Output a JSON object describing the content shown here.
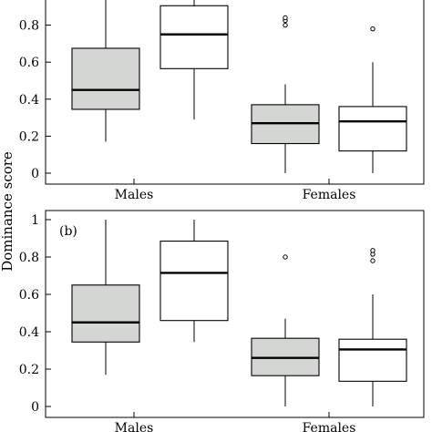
{
  "figure": {
    "shared_ylabel": "Dominance score"
  },
  "chart_data": [
    {
      "type": "box",
      "panel_label": "",
      "categories": [
        "Males",
        "Females"
      ],
      "ylim": [
        0,
        1
      ],
      "yticks": [
        "0",
        "0.2",
        "0.4",
        "0.6",
        "0.8"
      ],
      "grid": false,
      "legend": "none",
      "colors": {
        "grey": "#d3d6d3",
        "white": "#ffffff"
      },
      "boxes": [
        {
          "category": "Males",
          "fill": "grey",
          "min": 0.17,
          "q1": 0.345,
          "median": 0.45,
          "q3": 0.675,
          "max": 1.0,
          "outliers": []
        },
        {
          "category": "Males",
          "fill": "white",
          "min": 0.29,
          "q1": 0.565,
          "median": 0.75,
          "q3": 0.905,
          "max": 1.0,
          "outliers": []
        },
        {
          "category": "Females",
          "fill": "grey",
          "min": 0.0,
          "q1": 0.16,
          "median": 0.27,
          "q3": 0.37,
          "max": 0.48,
          "outliers": [
            0.8,
            0.825,
            0.84
          ]
        },
        {
          "category": "Females",
          "fill": "white",
          "min": 0.0,
          "q1": 0.12,
          "median": 0.28,
          "q3": 0.36,
          "max": 0.6,
          "outliers": [
            0.78
          ]
        }
      ]
    },
    {
      "type": "box",
      "panel_label": "(b)",
      "categories": [
        "Males",
        "Females"
      ],
      "ylim": [
        0,
        1
      ],
      "yticks": [
        "0",
        "0.2",
        "0.4",
        "0.6",
        "0.8",
        "1"
      ],
      "grid": false,
      "legend": "none",
      "colors": {
        "grey": "#d3d6d3",
        "white": "#ffffff"
      },
      "boxes": [
        {
          "category": "Males",
          "fill": "grey",
          "min": 0.17,
          "q1": 0.345,
          "median": 0.45,
          "q3": 0.65,
          "max": 1.0,
          "outliers": []
        },
        {
          "category": "Males",
          "fill": "white",
          "min": 0.345,
          "q1": 0.46,
          "median": 0.715,
          "q3": 0.885,
          "max": 1.0,
          "outliers": []
        },
        {
          "category": "Females",
          "fill": "grey",
          "min": 0.0,
          "q1": 0.165,
          "median": 0.26,
          "q3": 0.365,
          "max": 0.47,
          "outliers": [
            0.8
          ]
        },
        {
          "category": "Females",
          "fill": "white",
          "min": 0.0,
          "q1": 0.135,
          "median": 0.305,
          "q3": 0.36,
          "max": 0.6,
          "outliers": [
            0.78,
            0.815,
            0.835
          ]
        }
      ]
    }
  ]
}
